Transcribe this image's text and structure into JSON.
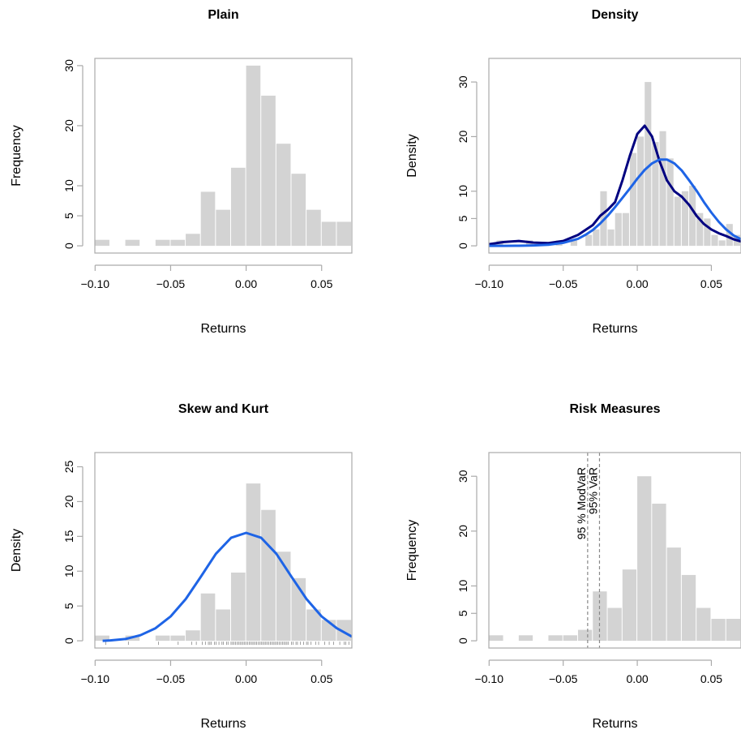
{
  "chart_data": [
    {
      "type": "bar",
      "title": "Plain",
      "xlabel": "Returns",
      "ylabel": "Frequency",
      "xlim": [
        -0.1,
        0.07
      ],
      "ylim": [
        0,
        30
      ],
      "x_ticks": [
        "−0.10",
        "−0.05",
        "0.00",
        "0.05"
      ],
      "y_ticks": [
        "0",
        "5",
        "10",
        "20",
        "30"
      ],
      "bin_width": 0.01,
      "bins": [
        {
          "x0": -0.1,
          "x1": -0.09,
          "value": 1
        },
        {
          "x0": -0.08,
          "x1": -0.07,
          "value": 1
        },
        {
          "x0": -0.06,
          "x1": -0.05,
          "value": 1
        },
        {
          "x0": -0.05,
          "x1": -0.04,
          "value": 1
        },
        {
          "x0": -0.04,
          "x1": -0.03,
          "value": 2
        },
        {
          "x0": -0.03,
          "x1": -0.02,
          "value": 9
        },
        {
          "x0": -0.02,
          "x1": -0.01,
          "value": 6
        },
        {
          "x0": -0.01,
          "x1": 0.0,
          "value": 13
        },
        {
          "x0": 0.0,
          "x1": 0.01,
          "value": 30
        },
        {
          "x0": 0.01,
          "x1": 0.02,
          "value": 25
        },
        {
          "x0": 0.02,
          "x1": 0.03,
          "value": 17
        },
        {
          "x0": 0.03,
          "x1": 0.04,
          "value": 12
        },
        {
          "x0": 0.04,
          "x1": 0.05,
          "value": 6
        },
        {
          "x0": 0.05,
          "x1": 0.06,
          "value": 4
        },
        {
          "x0": 0.06,
          "x1": 0.07,
          "value": 4
        }
      ],
      "bar_color": "#d3d3d3"
    },
    {
      "type": "bar",
      "title": "Density",
      "xlabel": "Returns",
      "ylabel": "Density",
      "xlim": [
        -0.1,
        0.07
      ],
      "ylim": [
        0,
        33
      ],
      "x_ticks": [
        "−0.10",
        "−0.05",
        "0.00",
        "0.05"
      ],
      "y_ticks": [
        "0",
        "5",
        "10",
        "20",
        "30"
      ],
      "bin_width": 0.005,
      "bins": [
        {
          "x0": -0.095,
          "x1": -0.09,
          "value": 1
        },
        {
          "x0": -0.075,
          "x1": -0.07,
          "value": 1
        },
        {
          "x0": -0.055,
          "x1": -0.05,
          "value": 1
        },
        {
          "x0": -0.045,
          "x1": -0.04,
          "value": 1
        },
        {
          "x0": -0.035,
          "x1": -0.03,
          "value": 2
        },
        {
          "x0": -0.03,
          "x1": -0.025,
          "value": 3
        },
        {
          "x0": -0.025,
          "x1": -0.02,
          "value": 10
        },
        {
          "x0": -0.02,
          "x1": -0.015,
          "value": 3
        },
        {
          "x0": -0.015,
          "x1": -0.01,
          "value": 6
        },
        {
          "x0": -0.01,
          "x1": -0.005,
          "value": 6
        },
        {
          "x0": -0.005,
          "x1": 0.0,
          "value": 17
        },
        {
          "x0": 0.0,
          "x1": 0.005,
          "value": 20
        },
        {
          "x0": 0.005,
          "x1": 0.01,
          "value": 30
        },
        {
          "x0": 0.01,
          "x1": 0.015,
          "value": 19
        },
        {
          "x0": 0.015,
          "x1": 0.02,
          "value": 21
        },
        {
          "x0": 0.02,
          "x1": 0.025,
          "value": 16
        },
        {
          "x0": 0.025,
          "x1": 0.03,
          "value": 9
        },
        {
          "x0": 0.03,
          "x1": 0.035,
          "value": 10
        },
        {
          "x0": 0.035,
          "x1": 0.04,
          "value": 11
        },
        {
          "x0": 0.04,
          "x1": 0.045,
          "value": 6
        },
        {
          "x0": 0.045,
          "x1": 0.05,
          "value": 5
        },
        {
          "x0": 0.05,
          "x1": 0.055,
          "value": 2
        },
        {
          "x0": 0.055,
          "x1": 0.06,
          "value": 1
        },
        {
          "x0": 0.06,
          "x1": 0.065,
          "value": 4
        },
        {
          "x0": 0.065,
          "x1": 0.07,
          "value": 2
        },
        {
          "x0": 0.07,
          "x1": 0.075,
          "value": 6
        }
      ],
      "series": [
        {
          "x": [
            -0.1,
            -0.09,
            -0.08,
            -0.07,
            -0.06,
            -0.05,
            -0.04,
            -0.03,
            -0.025,
            -0.02,
            -0.015,
            -0.01,
            -0.005,
            0.0,
            0.005,
            0.01,
            0.015,
            0.02,
            0.025,
            0.03,
            0.035,
            0.04,
            0.045,
            0.05,
            0.055,
            0.06,
            0.065,
            0.07
          ],
          "y": [
            0.3,
            0.7,
            0.9,
            0.6,
            0.5,
            0.9,
            2.0,
            3.8,
            5.5,
            6.6,
            8.0,
            12.0,
            16.5,
            20.5,
            22.0,
            20.0,
            15.5,
            12.0,
            10.0,
            9.0,
            7.5,
            5.5,
            4.0,
            3.0,
            2.3,
            1.8,
            1.2,
            0.8
          ],
          "color": "#000080"
        },
        {
          "x": [
            -0.1,
            -0.09,
            -0.08,
            -0.07,
            -0.06,
            -0.05,
            -0.04,
            -0.035,
            -0.03,
            -0.025,
            -0.02,
            -0.015,
            -0.01,
            -0.005,
            0.0,
            0.005,
            0.01,
            0.015,
            0.02,
            0.025,
            0.03,
            0.035,
            0.04,
            0.045,
            0.05,
            0.055,
            0.06,
            0.065,
            0.07
          ],
          "y": [
            0.0,
            0.0,
            0.02,
            0.07,
            0.2,
            0.55,
            1.3,
            2.0,
            2.9,
            4.1,
            5.5,
            7.1,
            8.8,
            10.5,
            12.3,
            13.9,
            15.1,
            15.8,
            15.8,
            15.1,
            13.8,
            12.0,
            10.1,
            8.0,
            6.1,
            4.4,
            3.0,
            1.9,
            1.2
          ],
          "color": "#1e64e6"
        }
      ],
      "bar_color": "#d3d3d3"
    },
    {
      "type": "bar",
      "title": "Skew and Kurt",
      "xlabel": "Returns",
      "ylabel": "Density",
      "xlim": [
        -0.1,
        0.07
      ],
      "ylim": [
        0,
        26
      ],
      "x_ticks": [
        "−0.10",
        "−0.05",
        "0.00",
        "0.05"
      ],
      "y_ticks": [
        "0",
        "5",
        "10",
        "15",
        "20",
        "25"
      ],
      "bin_width": 0.01,
      "bins": [
        {
          "x0": -0.1,
          "x1": -0.09,
          "value": 0.75
        },
        {
          "x0": -0.08,
          "x1": -0.07,
          "value": 0.75
        },
        {
          "x0": -0.06,
          "x1": -0.05,
          "value": 0.75
        },
        {
          "x0": -0.05,
          "x1": -0.04,
          "value": 0.75
        },
        {
          "x0": -0.04,
          "x1": -0.03,
          "value": 1.5
        },
        {
          "x0": -0.03,
          "x1": -0.02,
          "value": 6.8
        },
        {
          "x0": -0.02,
          "x1": -0.01,
          "value": 4.5
        },
        {
          "x0": -0.01,
          "x1": 0.0,
          "value": 9.8
        },
        {
          "x0": 0.0,
          "x1": 0.01,
          "value": 22.6
        },
        {
          "x0": 0.01,
          "x1": 0.02,
          "value": 18.8
        },
        {
          "x0": 0.02,
          "x1": 0.03,
          "value": 12.8
        },
        {
          "x0": 0.03,
          "x1": 0.04,
          "value": 9.0
        },
        {
          "x0": 0.04,
          "x1": 0.05,
          "value": 4.5
        },
        {
          "x0": 0.05,
          "x1": 0.06,
          "value": 3.0
        },
        {
          "x0": 0.06,
          "x1": 0.07,
          "value": 3.0
        }
      ],
      "series": [
        {
          "x": [
            -0.095,
            -0.09,
            -0.08,
            -0.07,
            -0.06,
            -0.05,
            -0.04,
            -0.03,
            -0.02,
            -0.01,
            0.0,
            0.01,
            0.02,
            0.03,
            0.04,
            0.05,
            0.06,
            0.07
          ],
          "y": [
            0.0,
            0.05,
            0.25,
            0.8,
            1.8,
            3.5,
            6.0,
            9.2,
            12.5,
            14.8,
            15.5,
            14.8,
            12.5,
            9.2,
            6.0,
            3.5,
            1.8,
            0.6
          ],
          "color": "#1e64e6"
        }
      ],
      "rug": [
        -0.093,
        -0.078,
        -0.058,
        -0.045,
        -0.036,
        -0.033,
        -0.029,
        -0.027,
        -0.025,
        -0.024,
        -0.023,
        -0.021,
        -0.02,
        -0.018,
        -0.016,
        -0.015,
        -0.013,
        -0.012,
        -0.01,
        -0.009,
        -0.008,
        -0.007,
        -0.006,
        -0.005,
        -0.004,
        -0.003,
        -0.002,
        -0.001,
        0.0,
        0.001,
        0.002,
        0.003,
        0.004,
        0.005,
        0.006,
        0.007,
        0.008,
        0.009,
        0.01,
        0.011,
        0.012,
        0.013,
        0.014,
        0.015,
        0.016,
        0.017,
        0.018,
        0.019,
        0.02,
        0.021,
        0.022,
        0.023,
        0.024,
        0.025,
        0.026,
        0.027,
        0.028,
        0.03,
        0.031,
        0.033,
        0.034,
        0.036,
        0.038,
        0.04,
        0.041,
        0.043,
        0.046,
        0.048,
        0.052,
        0.055,
        0.058,
        0.062,
        0.065,
        0.066,
        0.068
      ],
      "bar_color": "#d3d3d3"
    },
    {
      "type": "bar",
      "title": "Risk Measures",
      "xlabel": "Returns",
      "ylabel": "Frequency",
      "xlim": [
        -0.1,
        0.07
      ],
      "ylim": [
        0,
        33
      ],
      "x_ticks": [
        "−0.10",
        "−0.05",
        "0.00",
        "0.05"
      ],
      "y_ticks": [
        "0",
        "5",
        "10",
        "20",
        "30"
      ],
      "bin_width": 0.01,
      "bins": [
        {
          "x0": -0.1,
          "x1": -0.09,
          "value": 1
        },
        {
          "x0": -0.08,
          "x1": -0.07,
          "value": 1
        },
        {
          "x0": -0.06,
          "x1": -0.05,
          "value": 1
        },
        {
          "x0": -0.05,
          "x1": -0.04,
          "value": 1
        },
        {
          "x0": -0.04,
          "x1": -0.03,
          "value": 2
        },
        {
          "x0": -0.03,
          "x1": -0.02,
          "value": 9
        },
        {
          "x0": -0.02,
          "x1": -0.01,
          "value": 6
        },
        {
          "x0": -0.01,
          "x1": 0.0,
          "value": 13
        },
        {
          "x0": 0.0,
          "x1": 0.01,
          "value": 30
        },
        {
          "x0": 0.01,
          "x1": 0.02,
          "value": 25
        },
        {
          "x0": 0.02,
          "x1": 0.03,
          "value": 17
        },
        {
          "x0": 0.03,
          "x1": 0.04,
          "value": 12
        },
        {
          "x0": 0.04,
          "x1": 0.05,
          "value": 6
        },
        {
          "x0": 0.05,
          "x1": 0.06,
          "value": 4
        },
        {
          "x0": 0.06,
          "x1": 0.07,
          "value": 4
        }
      ],
      "vlines": [
        {
          "x": -0.0335,
          "label": "95 % ModVaR"
        },
        {
          "x": -0.0255,
          "label": "95% VaR"
        }
      ],
      "bar_color": "#d3d3d3"
    }
  ]
}
